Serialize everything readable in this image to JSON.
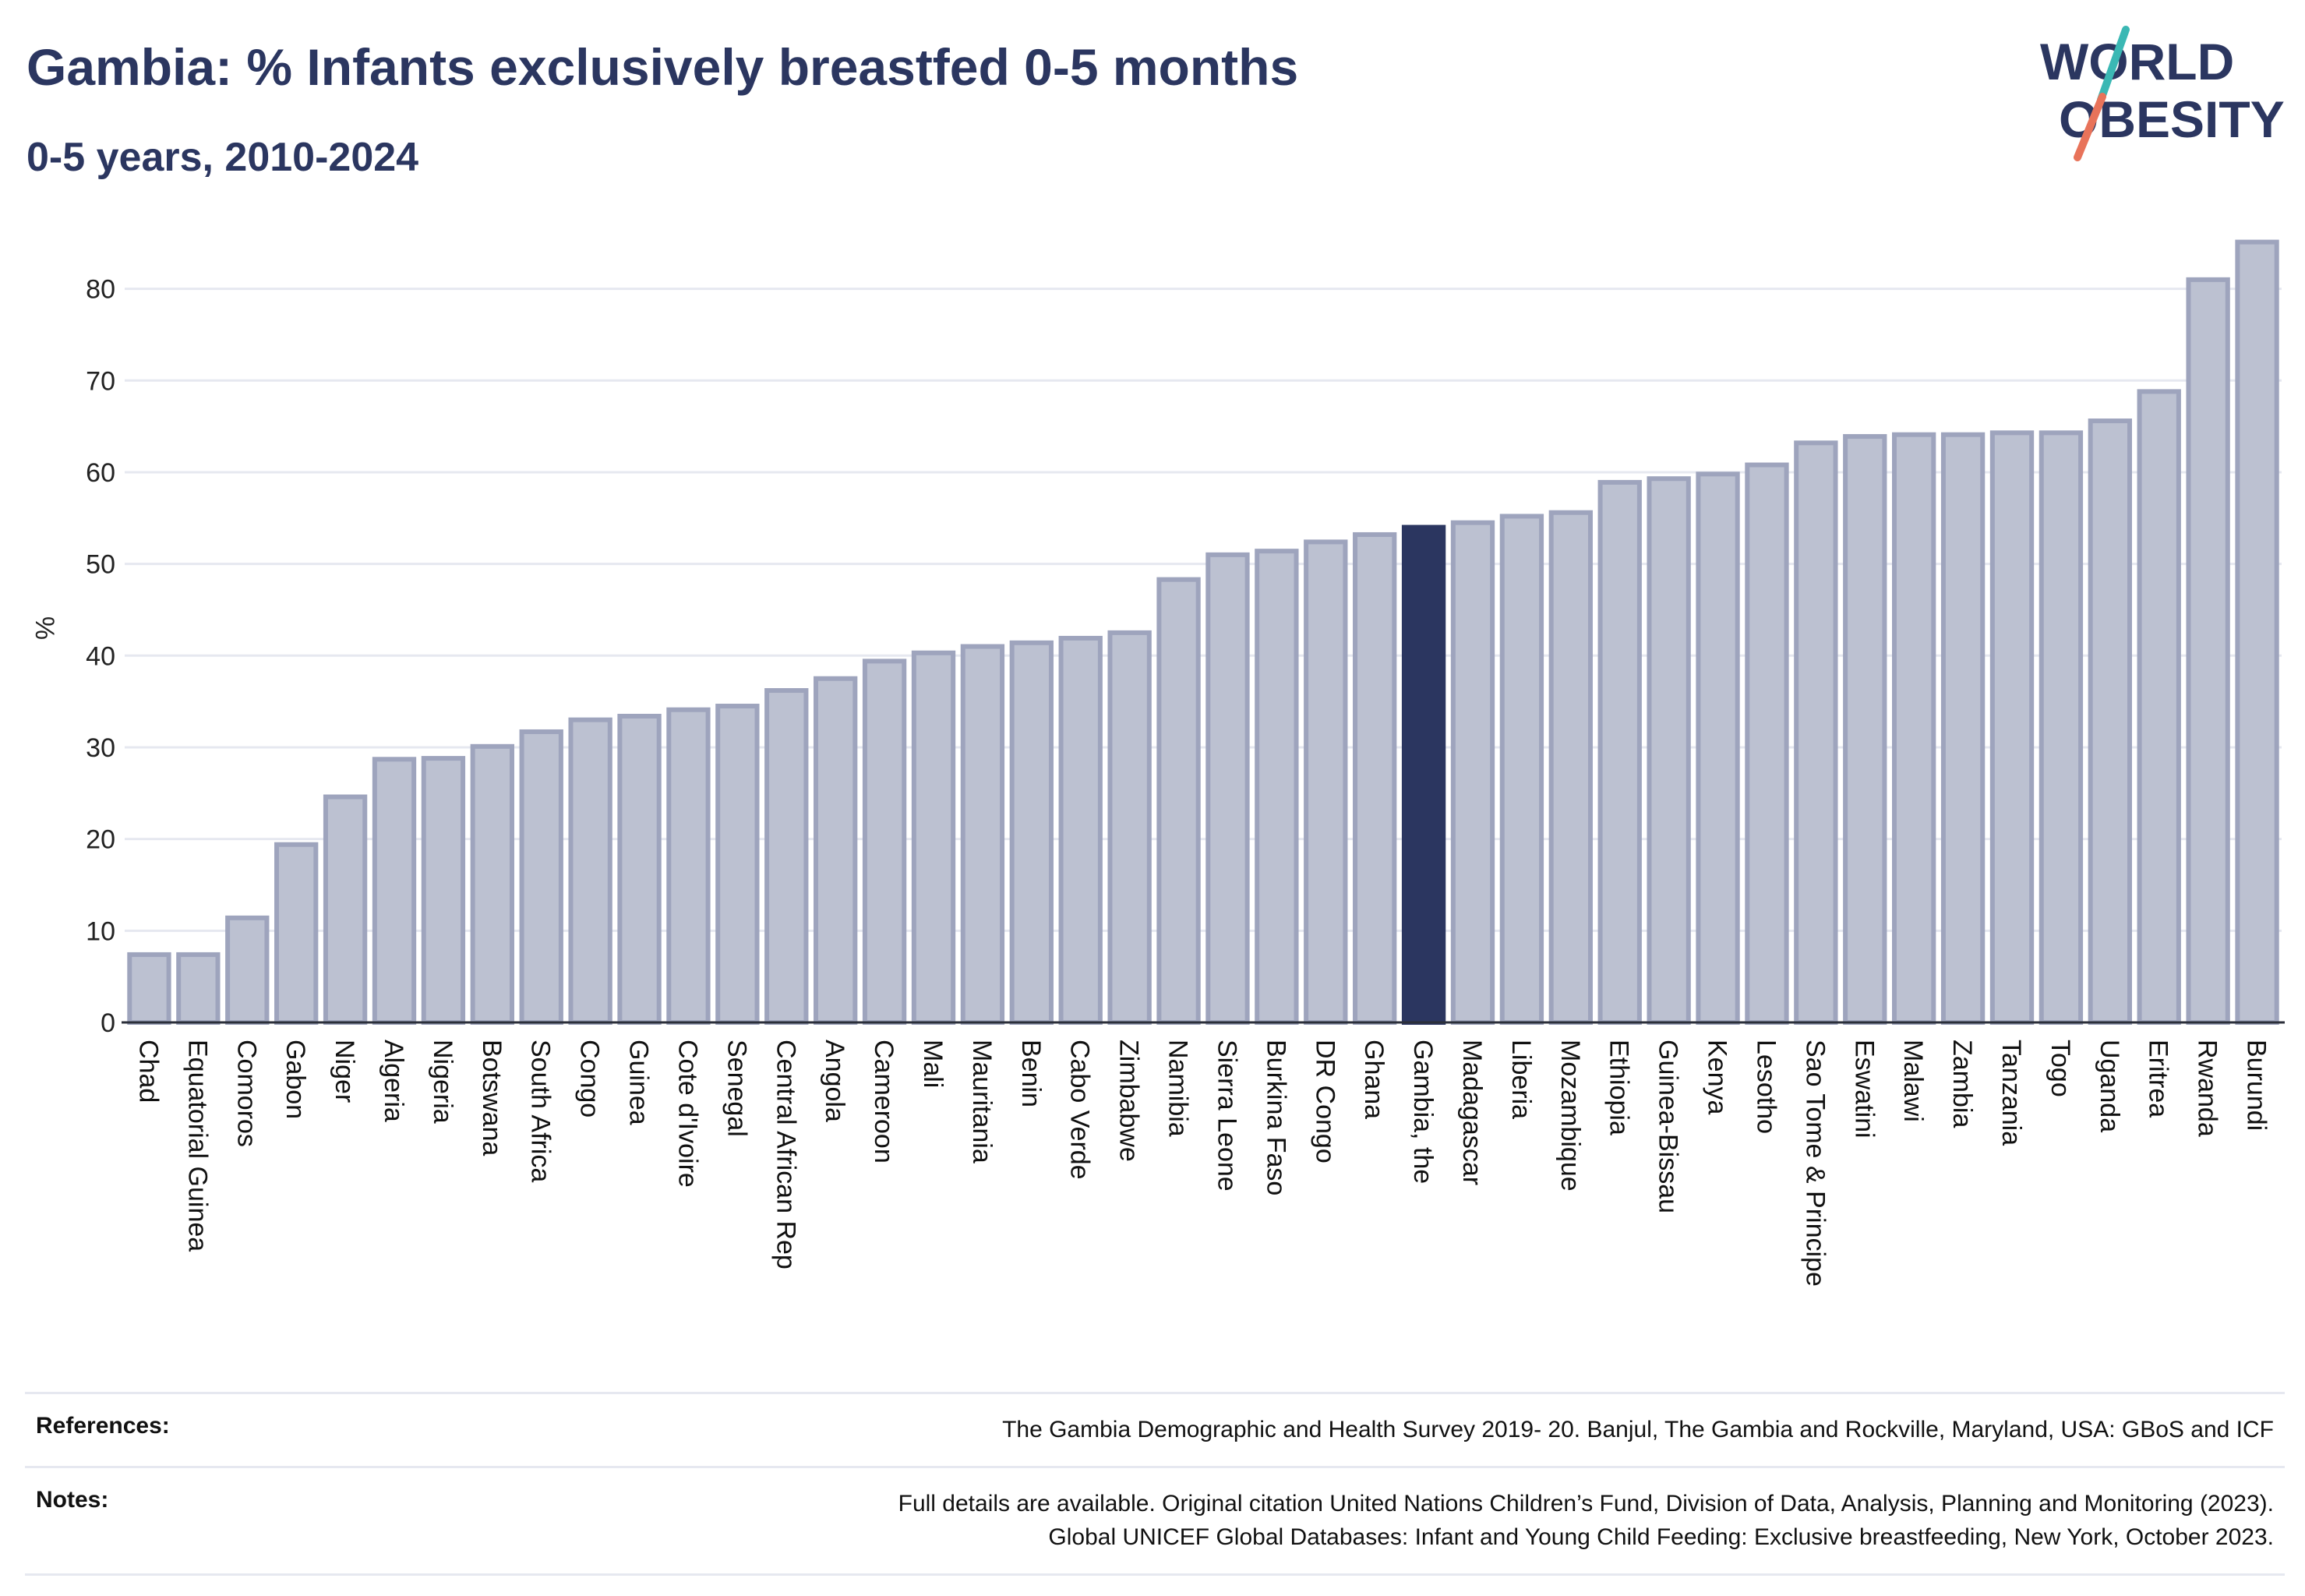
{
  "header": {
    "title": "Gambia: % Infants exclusively breastfed 0-5 months",
    "subtitle": "0-5 years, 2010-2024"
  },
  "logo": {
    "line1": "WORLD",
    "line2": "OBESITY",
    "colors": {
      "text": "#2b3660",
      "slash_top": "#3bb8b4",
      "slash_bottom": "#e8735a"
    }
  },
  "chart_data": {
    "type": "bar",
    "ylabel": "%",
    "ylim": [
      0,
      86
    ],
    "yticks": [
      0,
      10,
      20,
      30,
      40,
      50,
      60,
      70,
      80
    ],
    "grid": true,
    "highlight": "Gambia, the",
    "colors": {
      "bar": "#bcc1d1",
      "bar_edge": "#9ea4bd",
      "highlight": "#2b3660",
      "grid": "#e6e8f0"
    },
    "categories": [
      "Chad",
      "Equatorial Guinea",
      "Comoros",
      "Gabon",
      "Niger",
      "Algeria",
      "Nigeria",
      "Botswana",
      "South Africa",
      "Congo",
      "Guinea",
      "Cote d'Ivoire",
      "Senegal",
      "Central African Rep",
      "Angola",
      "Cameroon",
      "Mali",
      "Mauritania",
      "Benin",
      "Cabo Verde",
      "Zimbabwe",
      "Namibia",
      "Sierra Leone",
      "Burkina Faso",
      "DR Congo",
      "Ghana",
      "Gambia, the",
      "Madagascar",
      "Liberia",
      "Mozambique",
      "Ethiopia",
      "Guinea-Bissau",
      "Kenya",
      "Lesotho",
      "Sao Tome & Principe",
      "Eswatini",
      "Malawi",
      "Zambia",
      "Tanzania",
      "Togo",
      "Uganda",
      "Eritrea",
      "Rwanda",
      "Burundi"
    ],
    "values": [
      7.4,
      7.4,
      11.4,
      19.4,
      24.6,
      28.7,
      28.8,
      30.1,
      31.7,
      33.0,
      33.4,
      34.1,
      34.5,
      36.2,
      37.5,
      39.4,
      40.3,
      41.0,
      41.4,
      41.9,
      42.5,
      48.3,
      51.0,
      51.4,
      52.4,
      53.2,
      54.0,
      54.5,
      55.2,
      55.6,
      58.9,
      59.3,
      59.8,
      60.8,
      63.2,
      63.9,
      64.1,
      64.1,
      64.3,
      64.3,
      65.6,
      68.8,
      81.0,
      85.1
    ]
  },
  "footer": {
    "references_label": "References:",
    "references_text": "The Gambia Demographic and Health Survey 2019- 20. Banjul, The Gambia and Rockville, Maryland, USA: GBoS and ICF",
    "notes_label": "Notes:",
    "notes_line1": "Full details are available. Original citation United Nations Children’s Fund, Division of Data, Analysis, Planning and Monitoring (2023).",
    "notes_line2": "Global UNICEF Global Databases: Infant and Young Child Feeding: Exclusive breastfeeding, New York, October 2023."
  }
}
